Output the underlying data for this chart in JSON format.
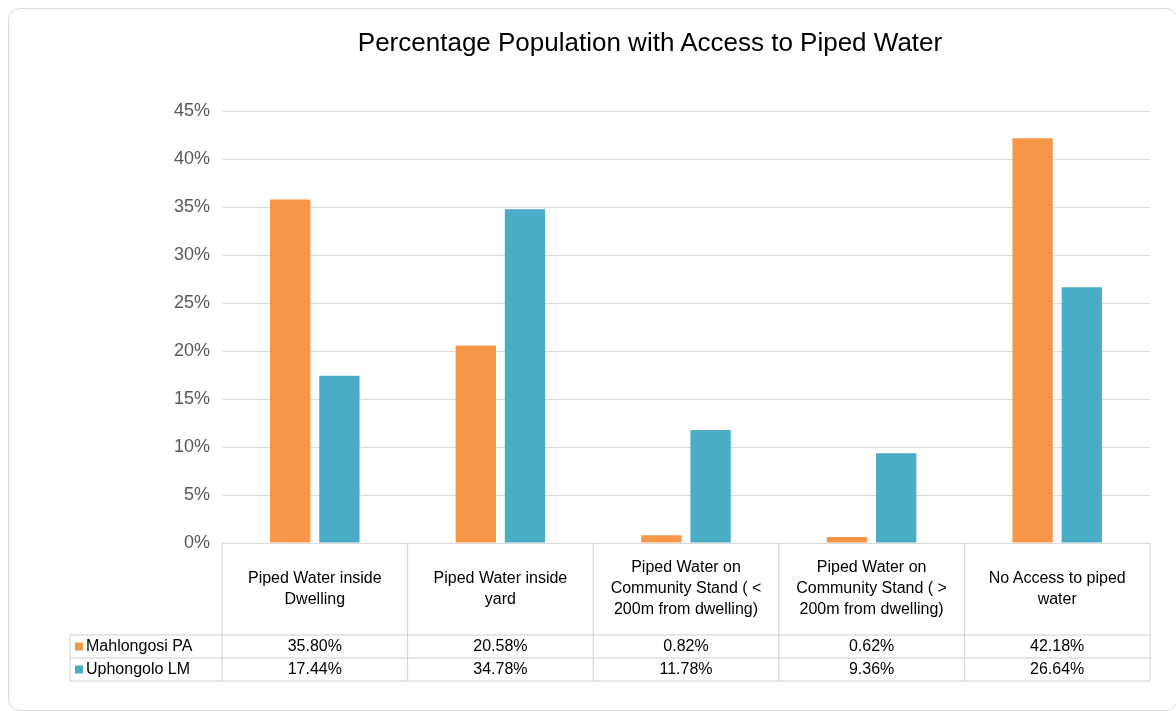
{
  "chart_data": {
    "type": "bar",
    "title": "Percentage Population with Access to Piped Water",
    "categories": [
      "Piped Water inside Dwelling",
      "Piped Water inside yard",
      "Piped Water on Community Stand ( < 200m from dwelling)",
      "Piped Water on Community Stand ( > 200m from dwelling)",
      "No Access to piped water"
    ],
    "series": [
      {
        "name": "Mahlongosi PA",
        "color": "#f79646",
        "values": [
          35.8,
          20.58,
          0.82,
          0.62,
          42.18
        ],
        "value_labels": [
          "35.80%",
          "20.58%",
          "0.82%",
          "0.62%",
          "42.18%"
        ]
      },
      {
        "name": "Uphongolo LM",
        "color": "#4bacc6",
        "values": [
          17.44,
          34.78,
          11.78,
          9.36,
          26.64
        ],
        "value_labels": [
          "17.44%",
          "34.78%",
          "11.78%",
          "9.36%",
          "26.64%"
        ]
      }
    ],
    "ylim": [
      0,
      45
    ],
    "yticks": [
      {
        "value": 0,
        "label": "0%"
      },
      {
        "value": 5,
        "label": "5%"
      },
      {
        "value": 10,
        "label": "10%"
      },
      {
        "value": 15,
        "label": "15%"
      },
      {
        "value": 20,
        "label": "20%"
      },
      {
        "value": 25,
        "label": "25%"
      },
      {
        "value": 30,
        "label": "30%"
      },
      {
        "value": 35,
        "label": "35%"
      },
      {
        "value": 40,
        "label": "40%"
      },
      {
        "value": 45,
        "label": "45%"
      }
    ],
    "grid": "y",
    "legend": "bottom"
  }
}
